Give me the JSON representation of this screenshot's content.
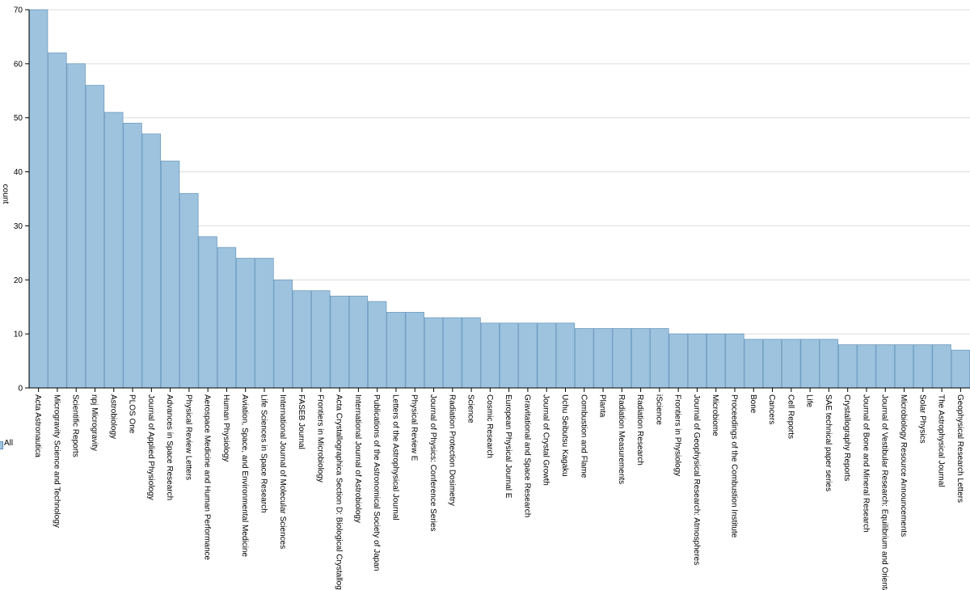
{
  "chart_data": {
    "type": "bar",
    "ylabel": "count",
    "xlabel": "",
    "ylim": [
      0,
      70
    ],
    "yticks": [
      0,
      10,
      20,
      30,
      40,
      50,
      60,
      70
    ],
    "grid": true,
    "legend": {
      "position": "left",
      "entries": [
        "All"
      ]
    },
    "colors": {
      "bar_fill": "#9ec3de",
      "bar_stroke": "#6f9cc0",
      "grid": "#dcdcdc"
    },
    "categories": [
      "Acta Astronautica",
      "Microgravity Science and Technology",
      "Scientific Reports",
      "npj Microgravity",
      "Astrobiology",
      "PLOS One",
      "Journal of Applied Physiology",
      "Advances in Space Research",
      "Physical Review Letters",
      "Aerospace Medicine and Human Performance",
      "Human Physiology",
      "Aviation, Space, and Environmental Medicine",
      "Life Sciences in Space Research",
      "International Journal of Molecular Sciences",
      "FASEB Journal",
      "Frontiers in Microbiology",
      "Acta Crystallographica Section D: Biological Crystallography",
      "International Journal of Astrobiology",
      "Publications of the Astronomical Society of Japan",
      "Letters of the Astrophysical Journal",
      "Physical Review E",
      "Journal of Physics: Conference Series",
      "Radiation Protection Dosimetry",
      "Science",
      "Cosmic Research",
      "European Physical Journal E",
      "Gravitational and Space Research",
      "Journal of Crystal Growth",
      "Uchu Seibutsu Kagaku",
      "Combustion and Flame",
      "Planta",
      "Radiation Measurements",
      "Radiation Research",
      "iScience",
      "Frontiers in Physiology",
      "Journal of Geophysical Research: Atmospheres",
      "Microbiome",
      "Proceedings of the Combustion Institute",
      "Bone",
      "Cancers",
      "Cell Reports",
      "Life",
      "SAE technical paper series",
      "Crystallography Reports",
      "Journal of Bone and Mineral Research",
      "Journal of Vestibular Research: Equilibrium and Orientation",
      "Microbiology Resource Announcements",
      "Solar Physics",
      "The Astrophysical Journal",
      "Geophysical Research Letters"
    ],
    "values": [
      70,
      62,
      60,
      56,
      51,
      49,
      47,
      42,
      36,
      28,
      26,
      24,
      24,
      20,
      18,
      18,
      17,
      17,
      16,
      14,
      14,
      13,
      13,
      13,
      12,
      12,
      12,
      12,
      12,
      11,
      11,
      11,
      11,
      11,
      10,
      10,
      10,
      10,
      9,
      9,
      9,
      9,
      9,
      8,
      8,
      8,
      8,
      8,
      8,
      7
    ]
  }
}
